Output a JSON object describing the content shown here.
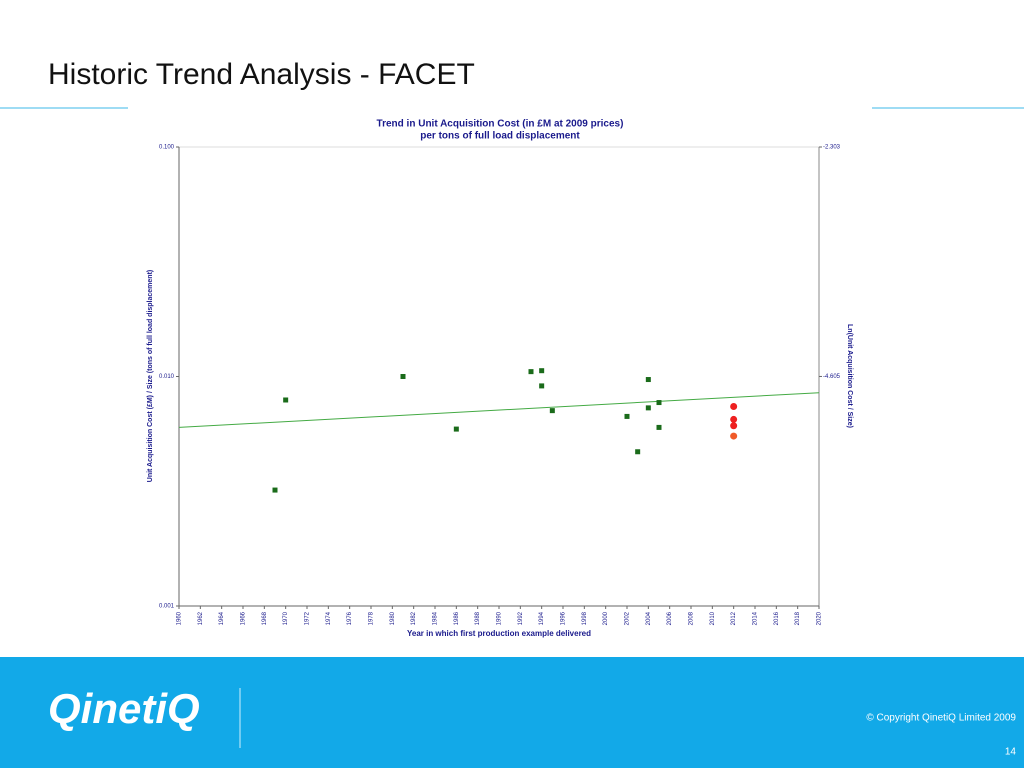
{
  "slide": {
    "title": "Historic Trend Analysis - FACET",
    "logo": "QinetiQ",
    "copyright": "© Copyright QinetiQ Limited 2009",
    "page": "14"
  },
  "chart_data": {
    "type": "scatter",
    "title": [
      "Trend in Unit Acquisition Cost (in £M at 2009 prices)",
      "per tons of full load displacement"
    ],
    "x_label": "Year in which first production example delivered",
    "y_label": "Unit Acquisition Cost (£M) / Size (tons of full load displacement)",
    "y2_label": "Ln(Unit Acquisition Cost / Size)",
    "xlim": [
      1960,
      2020
    ],
    "xticks": [
      1960,
      1962,
      1964,
      1966,
      1968,
      1970,
      1972,
      1974,
      1976,
      1978,
      1980,
      1982,
      1984,
      1986,
      1988,
      1990,
      1992,
      1994,
      1996,
      1998,
      2000,
      2002,
      2004,
      2006,
      2008,
      2010,
      2012,
      2014,
      2016,
      2018,
      2020
    ],
    "ylim": [
      0.001,
      0.1
    ],
    "ylog": true,
    "yticks": [
      {
        "value": 0.001,
        "label": "0.001"
      },
      {
        "value": 0.01,
        "label": "0.010"
      },
      {
        "value": 0.1,
        "label": "0.100"
      }
    ],
    "y2lim": [
      -6.908,
      -2.303
    ],
    "y2ticks": [
      -4.605,
      -2.303
    ],
    "series": [
      {
        "color": "#1a6b1a",
        "marker": "square",
        "x": [
          1969,
          1970,
          1981,
          1986,
          1993,
          1994,
          1994,
          1995,
          2002,
          2003,
          2004,
          2004,
          2005,
          2005
        ],
        "values": [
          0.0032,
          0.0079,
          0.01,
          0.0059,
          0.0105,
          0.0106,
          0.0091,
          0.0071,
          0.0067,
          0.0047,
          0.0097,
          0.0073,
          0.0077,
          0.006
        ]
      },
      {
        "color": "#ee2020",
        "marker": "circle",
        "x": [
          2012,
          2012,
          2012
        ],
        "values": [
          0.0074,
          0.0065,
          0.0061
        ]
      },
      {
        "color": "#f05a28",
        "marker": "circle",
        "x": [
          2012
        ],
        "values": [
          0.0055
        ]
      }
    ],
    "trendline": {
      "color": "#44aa44",
      "x": [
        1960,
        2020
      ],
      "values": [
        0.006,
        0.0085
      ]
    }
  }
}
